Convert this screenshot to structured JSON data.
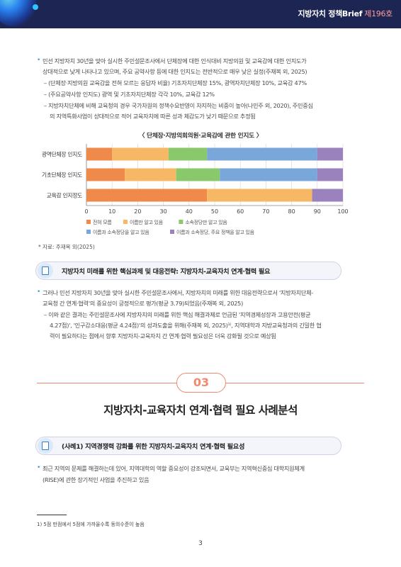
{
  "header": {
    "title": "지방자치 정책Brief",
    "issue": "제196호"
  },
  "para1": {
    "main1": "민선 지방자치 30년을 맞아 실시한 주민설문조사에서 단체장에 대한 인식대비 지방의원 및 교육감에 대한 인지도가",
    "main2": "상대적으로 낮게 나타나고 있으며, 주요 공약사항 등에 대한 인지도는 전반적으로 매우 낮은 실정(주재복 외, 2025)",
    "sub1": "– (단체장·지방의원 교육감을 전혀 모르는 응답자 비율) 기초자치단체장 15%, 광역자치단체장 10%, 교육감 47%",
    "sub2": "– (주요공약사항 인지도) 광역 및 기초자치단체장 각각 10%, 교육감 12%",
    "sub3a": "– 지방자치단체에 비해 교육청의 경우 국가차원의 정책수요반영이 차지하는 비중이 높아(나민주 외, 2020), 주민중심",
    "sub3b": "의 지역특화사업이 상대적으로 적어 교육자치에 따른 성과 체감도가 낮기 때문으로 추정됨"
  },
  "chart_data": {
    "type": "bar",
    "orientation": "horizontal-stacked",
    "title": "〈 단체장·지방의회의원·교육감에 관한 인지도 〉",
    "categories": [
      "광역단체장 인지도",
      "기초단체장 인지도",
      "교육감 인지정도"
    ],
    "series": [
      {
        "name": "전혀 모름",
        "color": "#f08a4b",
        "values": [
          10,
          15,
          47
        ]
      },
      {
        "name": "이름만 알고 있음",
        "color": "#f7b865",
        "values": [
          22,
          20,
          41
        ]
      },
      {
        "name": "소속정당만 알고 있음",
        "color": "#8ac96b",
        "values": [
          15,
          17,
          0
        ]
      },
      {
        "name": "이름과 소속정당을 알고 있음",
        "color": "#79a7d9",
        "values": [
          43,
          38,
          0
        ]
      },
      {
        "name": "이름과 소속정당, 주요 정책을 알고 있음",
        "color": "#9a82bd",
        "values": [
          10,
          10,
          12
        ]
      }
    ],
    "xlim": [
      0,
      100
    ],
    "xticks": [
      "0",
      "10",
      "20",
      "30",
      "40",
      "50",
      "60",
      "70",
      "80",
      "90",
      "100"
    ],
    "grid": true,
    "legend": "bottom"
  },
  "source": "* 자료: 주재복 외(2025)",
  "section_box1": "지방자치 미래를 위한 핵심과제 및 대응전략: 지방자치-교육자치 연계·협력 필요",
  "para2": {
    "main1": "그러나 민선 지방자치 30년을 맞아 실시한 주민설문조사에서, 지방자치의 미래를 위한 대응전략으로서 '지방자치단체-",
    "main2": "교육청 간 연계·협력'의 중요성이 긍정적으로 평가(평균 3.79)되었음(주재복 외, 2025)",
    "sub1a": "– 이와 같은 결과는 주민설문조사에 지방자치의 미래를 위한 핵심 해결과제로 언급된 '지역경제성장과 고용안전(평균",
    "sub1b": "4.27점)', '인구감소대응(평균 4.24점)'의 성과도출을 위해(주재복 외, 2025)¹⁾, 지역대학과 지방교육청과의 긴밀한 협",
    "sub1c": "력이 필요하다는 점에서 향후 지방자치-교육자치 간 연계·협력 필요성은 더욱 강화될 것으로 예상됨"
  },
  "section_number": "03",
  "section_title": "지방자치-교육자치 연계·협력 필요 사례분석",
  "section_box2": "(사례1) 지역경쟁력 강화를 위한 지방자치-교육자치 연계·협력 필요성",
  "para3": {
    "main1": "최근 지역의 문제를 해결하는데 있어, 지역대학의 역할 중요성이 강조되면서, 교육부는 지역혁신중심 대학지원체계",
    "main2": "(RISE)에 관한 장기적인 사업을 추진하고 있음"
  },
  "footnote": "1) 5점 만점에서 5점에 가까울수록 동의수준이 높음",
  "page_number": "3"
}
